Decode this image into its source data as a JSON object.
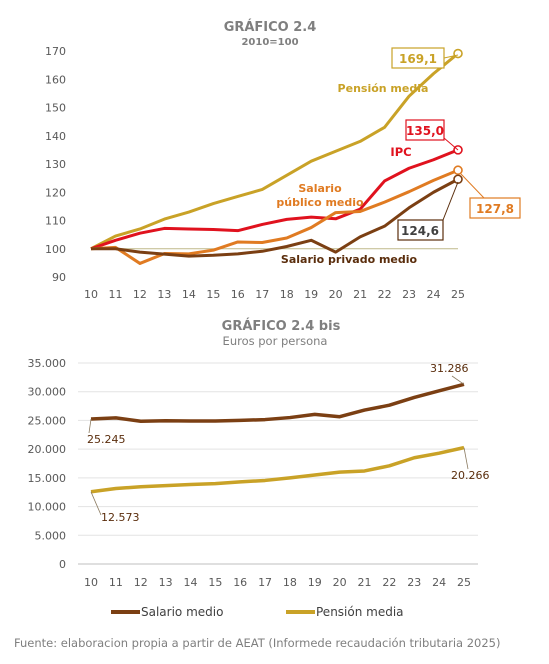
{
  "chart_data": [
    {
      "type": "line",
      "title": "GRÁFICO 2.4",
      "subtitle": "2010=100",
      "x": [
        "10",
        "11",
        "12",
        "13",
        "14",
        "15",
        "16",
        "17",
        "18",
        "19",
        "20",
        "21",
        "22",
        "23",
        "24",
        "25"
      ],
      "ylim": [
        90,
        170
      ],
      "yticks": [
        90,
        100,
        110,
        120,
        130,
        140,
        150,
        160,
        170
      ],
      "reference_line": 100,
      "grid": false,
      "series": [
        {
          "name": "Pensión media",
          "color": "#c9a227",
          "values": [
            100,
            104.5,
            107,
            110.5,
            113,
            116,
            118.5,
            121,
            126,
            131,
            134.5,
            138,
            143,
            154,
            162,
            169.1
          ],
          "end_label": "169,1"
        },
        {
          "name": "IPC",
          "color": "#e0121e",
          "values": [
            100,
            103,
            105.5,
            107.2,
            107,
            106.8,
            106.4,
            108.6,
            110.4,
            111.2,
            110.6,
            114,
            124,
            128.5,
            131.5,
            135.0
          ],
          "end_label": "135,0"
        },
        {
          "name": "Salario público medio",
          "label_lines": [
            "Salario",
            "público medio"
          ],
          "color": "#e07b22",
          "values": [
            100,
            100.5,
            94.8,
            98.3,
            98.2,
            99.5,
            102.4,
            102.2,
            103.8,
            107.5,
            112.8,
            113.2,
            116.5,
            120.2,
            124.2,
            127.8
          ],
          "end_label": "127,8"
        },
        {
          "name": "Salario privado medio",
          "color": "#7b3f13",
          "values": [
            100,
            100,
            98.8,
            98.1,
            97.4,
            97.7,
            98.2,
            99.1,
            100.8,
            103,
            98.8,
            104.2,
            108,
            114.5,
            120,
            124.6
          ],
          "end_label": "124,6"
        }
      ]
    },
    {
      "type": "line",
      "title": "GRÁFICO 2.4 bis",
      "subtitle": "Euros por persona",
      "x": [
        "10",
        "11",
        "12",
        "13",
        "14",
        "15",
        "16",
        "17",
        "18",
        "19",
        "20",
        "21",
        "22",
        "23",
        "24",
        "25"
      ],
      "ylim": [
        0,
        35000
      ],
      "yticks": [
        "0",
        "5.000",
        "10.000",
        "15.000",
        "20.000",
        "25.000",
        "30.000",
        "35.000"
      ],
      "grid": true,
      "legend": "bottom",
      "series": [
        {
          "name": "Salario medio",
          "color": "#7b3f13",
          "values": [
            25245,
            25450,
            24850,
            24950,
            24900,
            24900,
            25000,
            25150,
            25500,
            26050,
            25650,
            26800,
            27650,
            29000,
            30150,
            31286
          ],
          "start_label": "25.245",
          "end_label": "31.286"
        },
        {
          "name": "Pensión media",
          "color": "#c9a227",
          "values": [
            12573,
            13150,
            13450,
            13650,
            13850,
            14000,
            14300,
            14550,
            15000,
            15500,
            16000,
            16200,
            17100,
            18500,
            19300,
            20266
          ],
          "start_label": "12.573",
          "end_label": "20.266"
        }
      ]
    }
  ],
  "source": "Fuente: elaboracion propia a partir de AEAT (Informede recaudación tributaria 2025)"
}
